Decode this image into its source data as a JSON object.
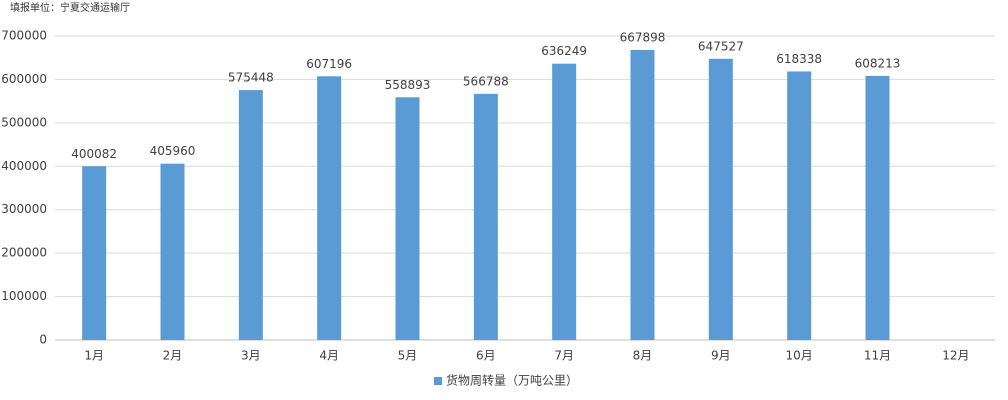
{
  "chart_data": {
    "type": "bar",
    "subtitle": "填报单位：宁夏交通运输厅",
    "categories": [
      "1月",
      "2月",
      "3月",
      "4月",
      "5月",
      "6月",
      "7月",
      "8月",
      "9月",
      "10月",
      "11月",
      "12月"
    ],
    "series": [
      {
        "name": "货物周转量（万吨公里）",
        "color": "#5b9bd5",
        "values": [
          400082,
          405960,
          575448,
          607196,
          558893,
          566788,
          636249,
          667898,
          647527,
          618338,
          608213,
          null
        ]
      }
    ],
    "ylim": [
      0,
      700000
    ],
    "yticks": [
      0,
      100000,
      200000,
      300000,
      400000,
      500000,
      600000,
      700000
    ],
    "grid": true,
    "legend": "bottom"
  }
}
